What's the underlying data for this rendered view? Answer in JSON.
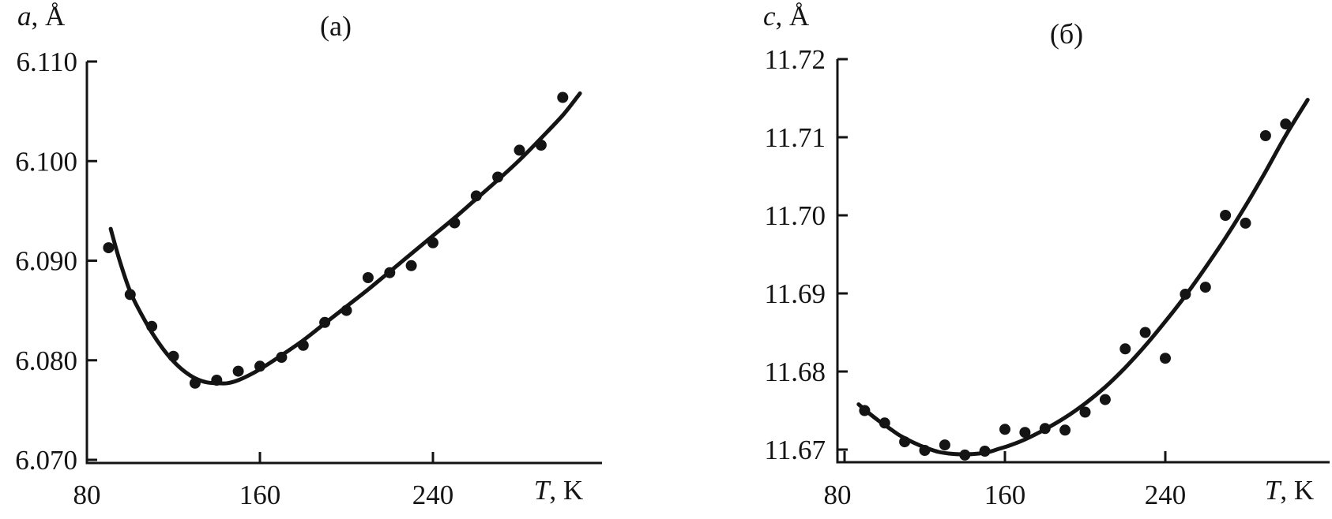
{
  "figure": {
    "background": "#ffffff",
    "ink_color": "#141414",
    "panels": [
      {
        "label": "(a)",
        "y_label_symbol": "a",
        "y_label_unit": ", Å",
        "x_label_symbol": "T",
        "x_label_unit": ", K"
      },
      {
        "label": "(б)",
        "y_label_symbol": "c",
        "y_label_unit": ", Å",
        "x_label_symbol": "T",
        "x_label_unit": ", K"
      }
    ]
  },
  "chart_data": [
    {
      "type": "scatter",
      "title": "(a)",
      "xlabel": "T, K",
      "ylabel": "a, Å",
      "xlim": [
        80,
        318
      ],
      "ylim": [
        6.07,
        6.11
      ],
      "x_ticks": [
        80,
        160,
        240
      ],
      "x_tick_labels": [
        "80",
        "160",
        "240"
      ],
      "y_ticks": [
        6.11,
        6.1,
        6.09,
        6.08,
        6.07
      ],
      "y_tick_labels": [
        "6.110",
        "6.100",
        "6.090",
        "6.080",
        "6.070"
      ],
      "grid": false,
      "legend": "none",
      "series": [
        {
          "name": "measured-points",
          "marker": "filled-circle",
          "x": [
            90,
            100,
            110,
            120,
            130,
            140,
            150,
            160,
            170,
            180,
            190,
            200,
            210,
            220,
            230,
            240,
            250,
            260,
            270,
            280,
            290,
            300
          ],
          "y": [
            6.0913,
            6.0866,
            6.0834,
            6.0804,
            6.0777,
            6.078,
            6.0789,
            6.0794,
            6.0803,
            6.0815,
            6.0838,
            6.085,
            6.0883,
            6.0888,
            6.0895,
            6.0918,
            6.0938,
            6.0965,
            6.0984,
            6.1011,
            6.1016,
            6.1064
          ]
        },
        {
          "name": "fit-curve",
          "style": "solid-line",
          "points": [
            [
              91,
              6.0932
            ],
            [
              95,
              6.0901
            ],
            [
              100,
              6.0869
            ],
            [
              105,
              6.0847
            ],
            [
              110,
              6.0828
            ],
            [
              115,
              6.0812
            ],
            [
              120,
              6.0799
            ],
            [
              125,
              6.0789
            ],
            [
              130,
              6.0782
            ],
            [
              135,
              6.0778
            ],
            [
              140,
              6.0777
            ],
            [
              145,
              6.0777
            ],
            [
              150,
              6.078
            ],
            [
              155,
              6.0785
            ],
            [
              160,
              6.0791
            ],
            [
              170,
              6.0805
            ],
            [
              180,
              6.082
            ],
            [
              190,
              6.0837
            ],
            [
              200,
              6.0854
            ],
            [
              210,
              6.0871
            ],
            [
              220,
              6.0889
            ],
            [
              230,
              6.0907
            ],
            [
              240,
              6.0925
            ],
            [
              250,
              6.0943
            ],
            [
              260,
              6.0962
            ],
            [
              270,
              6.0981
            ],
            [
              280,
              6.1001
            ],
            [
              290,
              6.1023
            ],
            [
              300,
              6.1046
            ],
            [
              308,
              6.1068
            ]
          ]
        }
      ]
    },
    {
      "type": "scatter",
      "title": "(б)",
      "xlabel": "T, K",
      "ylabel": "c, Å",
      "xlim": [
        77,
        322
      ],
      "ylim": [
        11.665,
        11.72
      ],
      "x_ticks": [
        80,
        160,
        240
      ],
      "x_tick_labels": [
        "80",
        "160",
        "240"
      ],
      "y_ticks": [
        11.72,
        11.71,
        11.7,
        11.69,
        11.68,
        11.67
      ],
      "y_tick_labels": [
        "11.72",
        "11.71",
        "11.70",
        "11.69",
        "11.68",
        "11.67"
      ],
      "grid": false,
      "legend": "none",
      "series": [
        {
          "name": "measured-points",
          "marker": "filled-circle",
          "x": [
            90,
            100,
            110,
            120,
            130,
            140,
            150,
            160,
            170,
            180,
            190,
            200,
            210,
            220,
            230,
            240,
            250,
            260,
            270,
            280,
            290,
            300
          ],
          "y": [
            11.675,
            11.6734,
            11.671,
            11.6699,
            11.6706,
            11.6693,
            11.6698,
            11.6726,
            11.6722,
            11.6727,
            11.6725,
            11.6748,
            11.6764,
            11.6829,
            11.685,
            11.6817,
            11.6899,
            11.6908,
            11.7,
            11.699,
            11.7102,
            11.7117
          ]
        },
        {
          "name": "fit-curve",
          "style": "solid-line",
          "points": [
            [
              87,
              11.6758
            ],
            [
              92,
              11.6747
            ],
            [
              97,
              11.6737
            ],
            [
              102,
              11.6728
            ],
            [
              107,
              11.6719
            ],
            [
              112,
              11.6712
            ],
            [
              117,
              11.6706
            ],
            [
              122,
              11.6701
            ],
            [
              127,
              11.6697
            ],
            [
              132,
              11.6695
            ],
            [
              137,
              11.6694
            ],
            [
              142,
              11.6694
            ],
            [
              147,
              11.6695
            ],
            [
              152,
              11.6697
            ],
            [
              157,
              11.6701
            ],
            [
              162,
              11.6705
            ],
            [
              170,
              11.6713
            ],
            [
              180,
              11.6726
            ],
            [
              190,
              11.6741
            ],
            [
              200,
              11.6759
            ],
            [
              210,
              11.678
            ],
            [
              220,
              11.6805
            ],
            [
              230,
              11.6833
            ],
            [
              240,
              11.6864
            ],
            [
              250,
              11.6897
            ],
            [
              260,
              11.6933
            ],
            [
              270,
              11.6971
            ],
            [
              280,
              11.7012
            ],
            [
              290,
              11.7056
            ],
            [
              300,
              11.7102
            ],
            [
              311,
              11.7148
            ]
          ]
        }
      ]
    }
  ]
}
